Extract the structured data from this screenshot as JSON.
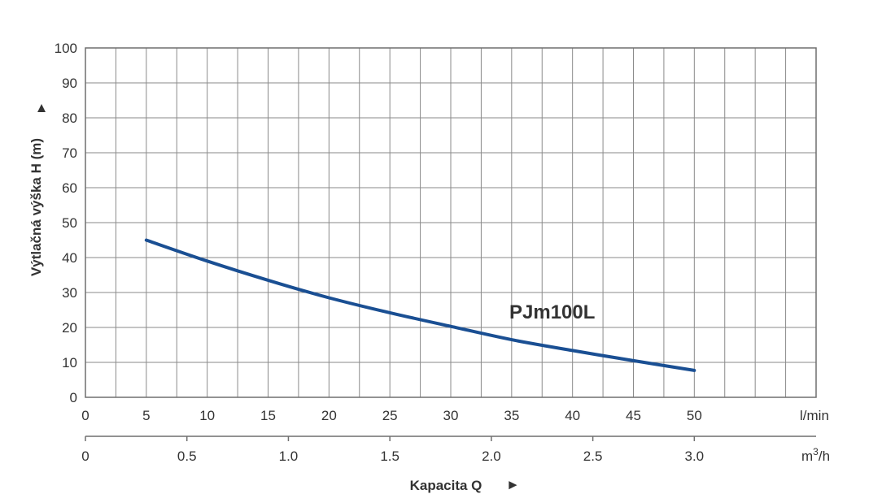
{
  "chart_data": {
    "type": "line",
    "y_axis": {
      "label": "Výtlačná výška H (m)",
      "arrow": "▲",
      "range": [
        0,
        100
      ],
      "ticks": [
        0,
        10,
        20,
        30,
        40,
        50,
        60,
        70,
        80,
        90,
        100
      ]
    },
    "x_axis": {
      "unit": "l/min",
      "range": [
        0,
        60
      ],
      "ticks": [
        0,
        5,
        10,
        15,
        20,
        25,
        30,
        35,
        40,
        45,
        50
      ],
      "grid_step": 2.5
    },
    "x_axis_secondary": {
      "unit_base": "m",
      "unit_sup": "3",
      "unit_suffix": "/h",
      "ticks": [
        0,
        0.5,
        1.0,
        1.5,
        2.0,
        2.5,
        3.0
      ],
      "tick_labels": [
        "0",
        "0.5",
        "1.0",
        "1.5",
        "2.0",
        "2.5",
        "3.0"
      ]
    },
    "x_title": "Kapacita Q",
    "x_title_arrow": "►",
    "grid": true,
    "series": [
      {
        "name": "PJm100L",
        "color": "#1a4f93",
        "x": [
          5,
          10,
          15,
          20,
          25,
          30,
          35,
          40,
          45,
          50
        ],
        "y": [
          45,
          39,
          33.5,
          28.5,
          24.2,
          20.3,
          16.5,
          13.4,
          10.5,
          7.7
        ]
      }
    ]
  }
}
